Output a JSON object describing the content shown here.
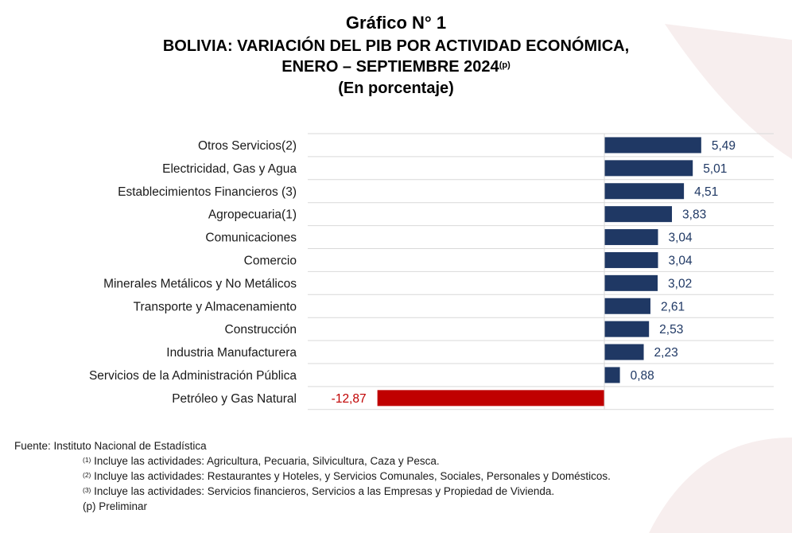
{
  "title": {
    "line1": "Gráfico N° 1",
    "line2": "BOLIVIA: VARIACIÓN DEL PIB POR ACTIVIDAD ECONÓMICA,",
    "line3": "ENERO – SEPTIEMBRE 2024",
    "line3_sup": "(p)",
    "line4": "(En porcentaje)"
  },
  "chart_data": {
    "type": "bar",
    "orientation": "horizontal",
    "categories": [
      "Otros Servicios(2)",
      "Electricidad, Gas y Agua",
      "Establecimientos Financieros (3)",
      "Agropecuaria(1)",
      "Comunicaciones",
      "Comercio",
      "Minerales Metálicos y No Metálicos",
      "Transporte y Almacenamiento",
      "Construcción",
      "Industria Manufacturera",
      "Servicios de la Administración Pública",
      "Petróleo y Gas Natural"
    ],
    "values": [
      5.49,
      5.01,
      4.51,
      3.83,
      3.04,
      3.04,
      3.02,
      2.61,
      2.53,
      2.23,
      0.88,
      -12.87
    ],
    "value_labels": [
      "5,49",
      "5,01",
      "4,51",
      "3,83",
      "3,04",
      "3,04",
      "3,02",
      "2,61",
      "2,53",
      "2,23",
      "0,88",
      "-12,87"
    ],
    "colors": {
      "positive": "#1f3864",
      "negative": "#c00000",
      "value_label_positive": "#1f3864",
      "value_label_negative": "#c00000"
    },
    "xlim": [
      -16.82,
      9.6
    ],
    "grid": "horizontal"
  },
  "footer": {
    "source": "Fuente: Instituto Nacional de Estadística",
    "notes": [
      {
        "sup": "(1)",
        "text": " Incluye las actividades: Agricultura, Pecuaria, Silvicultura, Caza y Pesca."
      },
      {
        "sup": "(2)",
        "text": " Incluye las actividades: Restaurantes y Hoteles, y Servicios Comunales, Sociales, Personales y Domésticos."
      },
      {
        "sup": "(3)",
        "text": " Incluye las actividades: Servicios financieros, Servicios a las Empresas y Propiedad de Vivienda."
      }
    ],
    "preliminar": "(p) Preliminar"
  }
}
